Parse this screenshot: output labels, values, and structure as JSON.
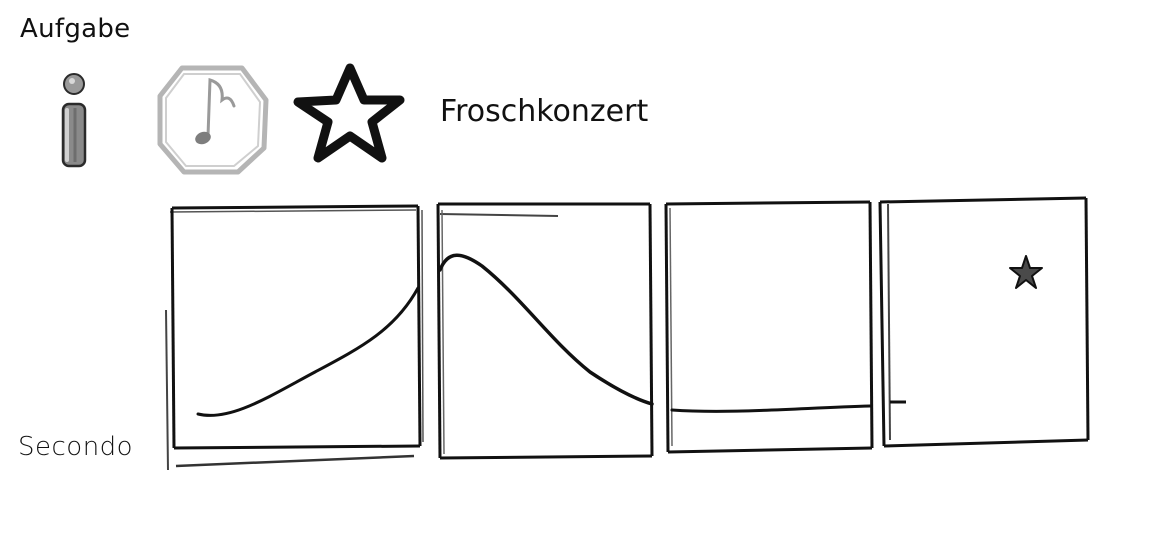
{
  "header": {
    "heading": "Aufgabe",
    "title": "Froschkonzert"
  },
  "toolbar": {
    "icons": [
      {
        "name": "info-icon",
        "color": "#6f6f6f"
      },
      {
        "name": "music-note-icon",
        "color": "#a9a9a9"
      },
      {
        "name": "star-outline-icon",
        "color": "#111111"
      }
    ]
  },
  "voice": {
    "label": "Secondo"
  },
  "panels": [
    {
      "shape": "rising-curve",
      "has_star": false
    },
    {
      "shape": "peak-then-falling-curve",
      "has_star": false
    },
    {
      "shape": "flat-line",
      "has_star": false
    },
    {
      "shape": "empty",
      "has_star": true
    }
  ],
  "colors": {
    "ink": "#111111",
    "muted": "#a9a9a9",
    "background": "#ffffff"
  }
}
